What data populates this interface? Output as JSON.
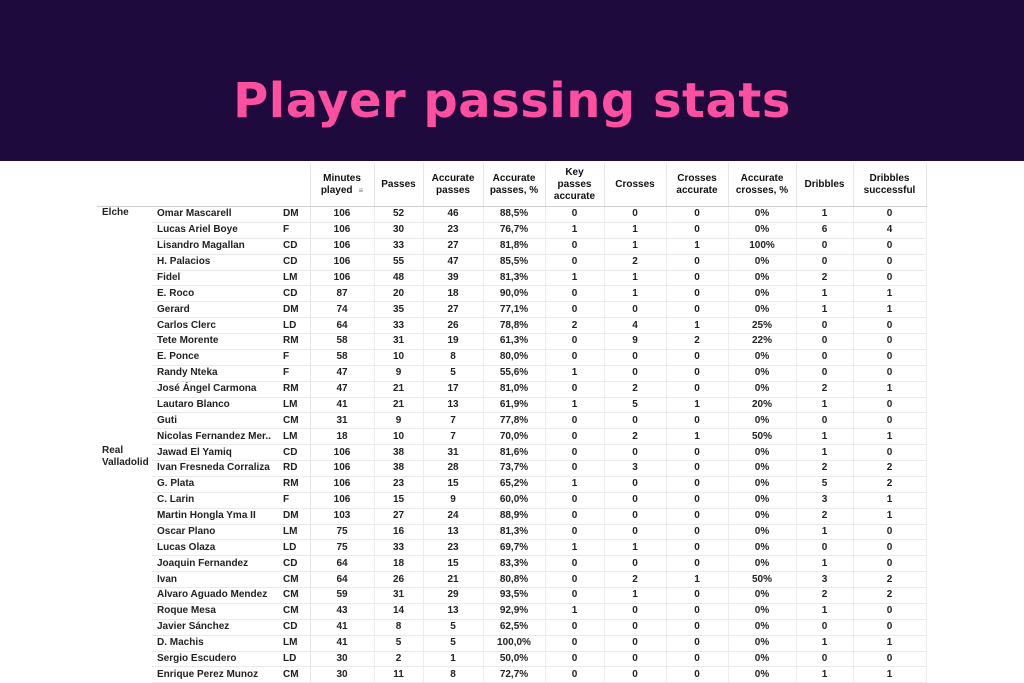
{
  "title": "Player passing stats",
  "table": {
    "headers": {
      "minutes": "Minutes played",
      "passes": "Passes",
      "acc_passes": "Accurate passes",
      "acc_passes_pct": "Accurate passes, %",
      "key_passes": "Key passes accurate",
      "crosses": "Crosses",
      "crosses_acc": "Crosses accurate",
      "acc_crosses_pct": "Accurate crosses, %",
      "dribbles": "Dribbles",
      "dribbles_succ": "Dribbles successful"
    },
    "sort_icon": "sort-icon",
    "teams": [
      {
        "name": "Elche",
        "rows": [
          [
            "Omar Mascarell",
            "DM",
            "106",
            "52",
            "46",
            "88,5%",
            "0",
            "0",
            "0",
            "0%",
            "1",
            "0"
          ],
          [
            "Lucas Ariel Boye",
            "F",
            "106",
            "30",
            "23",
            "76,7%",
            "1",
            "1",
            "0",
            "0%",
            "6",
            "4"
          ],
          [
            "Lisandro Magallan",
            "CD",
            "106",
            "33",
            "27",
            "81,8%",
            "0",
            "1",
            "1",
            "100%",
            "0",
            "0"
          ],
          [
            "H. Palacios",
            "CD",
            "106",
            "55",
            "47",
            "85,5%",
            "0",
            "2",
            "0",
            "0%",
            "0",
            "0"
          ],
          [
            "Fidel",
            "LM",
            "106",
            "48",
            "39",
            "81,3%",
            "1",
            "1",
            "0",
            "0%",
            "2",
            "0"
          ],
          [
            "E. Roco",
            "CD",
            "87",
            "20",
            "18",
            "90,0%",
            "0",
            "1",
            "0",
            "0%",
            "1",
            "1"
          ],
          [
            "Gerard",
            "DM",
            "74",
            "35",
            "27",
            "77,1%",
            "0",
            "0",
            "0",
            "0%",
            "1",
            "1"
          ],
          [
            "Carlos Clerc",
            "LD",
            "64",
            "33",
            "26",
            "78,8%",
            "2",
            "4",
            "1",
            "25%",
            "0",
            "0"
          ],
          [
            "Tete Morente",
            "RM",
            "58",
            "31",
            "19",
            "61,3%",
            "0",
            "9",
            "2",
            "22%",
            "0",
            "0"
          ],
          [
            "E. Ponce",
            "F",
            "58",
            "10",
            "8",
            "80,0%",
            "0",
            "0",
            "0",
            "0%",
            "0",
            "0"
          ],
          [
            "Randy Nteka",
            "F",
            "47",
            "9",
            "5",
            "55,6%",
            "1",
            "0",
            "0",
            "0%",
            "0",
            "0"
          ],
          [
            "José Ángel Carmona",
            "RM",
            "47",
            "21",
            "17",
            "81,0%",
            "0",
            "2",
            "0",
            "0%",
            "2",
            "1"
          ],
          [
            "Lautaro Blanco",
            "LM",
            "41",
            "21",
            "13",
            "61,9%",
            "1",
            "5",
            "1",
            "20%",
            "1",
            "0"
          ],
          [
            "Guti",
            "CM",
            "31",
            "9",
            "7",
            "77,8%",
            "0",
            "0",
            "0",
            "0%",
            "0",
            "0"
          ],
          [
            "Nicolas Fernandez Mer..",
            "LM",
            "18",
            "10",
            "7",
            "70,0%",
            "0",
            "2",
            "1",
            "50%",
            "1",
            "1"
          ]
        ]
      },
      {
        "name": "Real Valladolid",
        "rows": [
          [
            "Jawad El Yamiq",
            "CD",
            "106",
            "38",
            "31",
            "81,6%",
            "0",
            "0",
            "0",
            "0%",
            "1",
            "0"
          ],
          [
            "Ivan Fresneda Corraliza",
            "RD",
            "106",
            "38",
            "28",
            "73,7%",
            "0",
            "3",
            "0",
            "0%",
            "2",
            "2"
          ],
          [
            "G. Plata",
            "RM",
            "106",
            "23",
            "15",
            "65,2%",
            "1",
            "0",
            "0",
            "0%",
            "5",
            "2"
          ],
          [
            "C. Larin",
            "F",
            "106",
            "15",
            "9",
            "60,0%",
            "0",
            "0",
            "0",
            "0%",
            "3",
            "1"
          ],
          [
            "Martin Hongla Yma II",
            "DM",
            "103",
            "27",
            "24",
            "88,9%",
            "0",
            "0",
            "0",
            "0%",
            "2",
            "1"
          ],
          [
            "Oscar Plano",
            "LM",
            "75",
            "16",
            "13",
            "81,3%",
            "0",
            "0",
            "0",
            "0%",
            "1",
            "0"
          ],
          [
            "Lucas Olaza",
            "LD",
            "75",
            "33",
            "23",
            "69,7%",
            "1",
            "1",
            "0",
            "0%",
            "0",
            "0"
          ],
          [
            "Joaquin Fernandez",
            "CD",
            "64",
            "18",
            "15",
            "83,3%",
            "0",
            "0",
            "0",
            "0%",
            "1",
            "0"
          ],
          [
            "Ivan",
            "CM",
            "64",
            "26",
            "21",
            "80,8%",
            "0",
            "2",
            "1",
            "50%",
            "3",
            "2"
          ],
          [
            "Alvaro Aguado Mendez",
            "CM",
            "59",
            "31",
            "29",
            "93,5%",
            "0",
            "1",
            "0",
            "0%",
            "2",
            "2"
          ],
          [
            "Roque Mesa",
            "CM",
            "43",
            "14",
            "13",
            "92,9%",
            "1",
            "0",
            "0",
            "0%",
            "1",
            "0"
          ],
          [
            "Javier Sánchez",
            "CD",
            "41",
            "8",
            "5",
            "62,5%",
            "0",
            "0",
            "0",
            "0%",
            "0",
            "0"
          ],
          [
            "D. Machis",
            "LM",
            "41",
            "5",
            "5",
            "100,0%",
            "0",
            "0",
            "0",
            "0%",
            "1",
            "1"
          ],
          [
            "Sergio Escudero",
            "LD",
            "30",
            "2",
            "1",
            "50,0%",
            "0",
            "0",
            "0",
            "0%",
            "0",
            "0"
          ],
          [
            "Enrique Perez Munoz",
            "CM",
            "30",
            "11",
            "8",
            "72,7%",
            "0",
            "0",
            "0",
            "0%",
            "1",
            "1"
          ]
        ]
      }
    ]
  }
}
